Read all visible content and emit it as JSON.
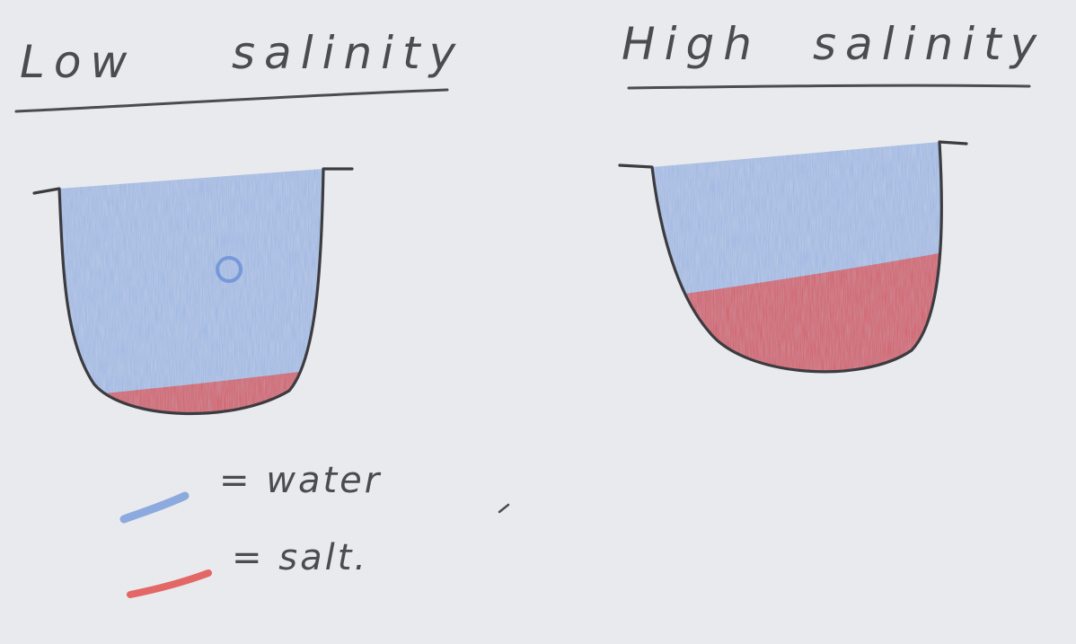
{
  "panels": {
    "left": {
      "title_word1": "Low",
      "title_word2": "salinity",
      "salt_fraction": 0.15
    },
    "right": {
      "title_word1": "High",
      "title_word2": "salinity",
      "salt_fraction": 0.45
    }
  },
  "legend": {
    "water": {
      "label": "= water",
      "color": "#7d9fdc"
    },
    "salt": {
      "label": "= salt.",
      "color": "#e2504e"
    }
  },
  "colors": {
    "paper": "#e9eaee",
    "pencil": "#4b4b50",
    "water": "#7d9fdc",
    "salt": "#e2504e"
  }
}
